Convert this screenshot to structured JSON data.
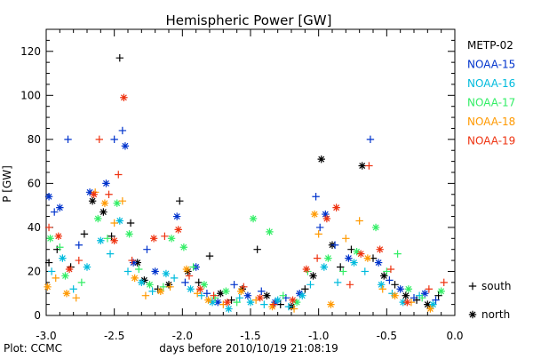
{
  "chart_data": {
    "type": "scatter",
    "title": "Hemispheric Power [GW]",
    "ylabel": "P [GW]",
    "xlabel": "days before 2010/10/19 21:08:19",
    "xlim": [
      -3.0,
      0.0
    ],
    "ylim": [
      0,
      130
    ],
    "x_ticks": [
      -3.0,
      -2.5,
      -2.0,
      -1.5,
      -1.0,
      -0.5,
      0.0
    ],
    "x_tick_labels": [
      "-3.0",
      "-2.5",
      "-2.0",
      "-1.5",
      "-1.0",
      "-0.5",
      "0.0"
    ],
    "y_ticks": [
      0,
      20,
      40,
      60,
      80,
      100,
      120
    ],
    "y_tick_labels": [
      "0",
      "20",
      "40",
      "60",
      "80",
      "100",
      "120"
    ],
    "legend_position": "right",
    "marker_legend": [
      {
        "symbol": "+",
        "label": "south",
        "marker": "plus"
      },
      {
        "symbol": "*",
        "label": "north",
        "marker": "star"
      }
    ],
    "footer": "Plot: CCMC",
    "series": [
      {
        "name": "METP-02",
        "color": "#000000",
        "points": [
          {
            "x": -2.98,
            "y": 24,
            "h": "s"
          },
          {
            "x": -2.92,
            "y": 30,
            "h": "s"
          },
          {
            "x": -2.82,
            "y": 22,
            "h": "s"
          },
          {
            "x": -2.72,
            "y": 37,
            "h": "s"
          },
          {
            "x": -2.66,
            "y": 52,
            "h": "n"
          },
          {
            "x": -2.58,
            "y": 47,
            "h": "n"
          },
          {
            "x": -2.52,
            "y": 36,
            "h": "s"
          },
          {
            "x": -2.46,
            "y": 117,
            "h": "s"
          },
          {
            "x": -2.38,
            "y": 42,
            "h": "s"
          },
          {
            "x": -2.33,
            "y": 24,
            "h": "n"
          },
          {
            "x": -2.28,
            "y": 16,
            "h": "n"
          },
          {
            "x": -2.18,
            "y": 12,
            "h": "s"
          },
          {
            "x": -2.1,
            "y": 14,
            "h": "n"
          },
          {
            "x": -2.02,
            "y": 52,
            "h": "s"
          },
          {
            "x": -1.96,
            "y": 20,
            "h": "n"
          },
          {
            "x": -1.88,
            "y": 15,
            "h": "s"
          },
          {
            "x": -1.8,
            "y": 27,
            "h": "s"
          },
          {
            "x": -1.72,
            "y": 10,
            "h": "n"
          },
          {
            "x": -1.64,
            "y": 7,
            "h": "s"
          },
          {
            "x": -1.56,
            "y": 12,
            "h": "n"
          },
          {
            "x": -1.45,
            "y": 30,
            "h": "s"
          },
          {
            "x": -1.38,
            "y": 9,
            "h": "n"
          },
          {
            "x": -1.28,
            "y": 5,
            "h": "s"
          },
          {
            "x": -1.2,
            "y": 4,
            "h": "n"
          },
          {
            "x": -1.1,
            "y": 12,
            "h": "s"
          },
          {
            "x": -1.04,
            "y": 18,
            "h": "n"
          },
          {
            "x": -0.98,
            "y": 71,
            "h": "n"
          },
          {
            "x": -0.9,
            "y": 32,
            "h": "n"
          },
          {
            "x": -0.84,
            "y": 22,
            "h": "s"
          },
          {
            "x": -0.76,
            "y": 30,
            "h": "s"
          },
          {
            "x": -0.68,
            "y": 68,
            "h": "n"
          },
          {
            "x": -0.6,
            "y": 26,
            "h": "s"
          },
          {
            "x": -0.52,
            "y": 18,
            "h": "n"
          },
          {
            "x": -0.44,
            "y": 14,
            "h": "s"
          },
          {
            "x": -0.36,
            "y": 9,
            "h": "n"
          },
          {
            "x": -0.28,
            "y": 7,
            "h": "s"
          },
          {
            "x": -0.2,
            "y": 5,
            "h": "n"
          },
          {
            "x": -0.12,
            "y": 9,
            "h": "s"
          }
        ]
      },
      {
        "name": "NOAA-15",
        "color": "#0033cc",
        "points": [
          {
            "x": -2.98,
            "y": 54,
            "h": "n"
          },
          {
            "x": -2.94,
            "y": 47,
            "h": "s"
          },
          {
            "x": -2.9,
            "y": 49,
            "h": "n"
          },
          {
            "x": -2.84,
            "y": 80,
            "h": "s"
          },
          {
            "x": -2.76,
            "y": 32,
            "h": "s"
          },
          {
            "x": -2.68,
            "y": 56,
            "h": "n"
          },
          {
            "x": -2.56,
            "y": 60,
            "h": "n"
          },
          {
            "x": -2.5,
            "y": 80,
            "h": "s"
          },
          {
            "x": -2.44,
            "y": 84,
            "h": "s"
          },
          {
            "x": -2.42,
            "y": 77,
            "h": "n"
          },
          {
            "x": -2.36,
            "y": 24,
            "h": "n"
          },
          {
            "x": -2.26,
            "y": 30,
            "h": "s"
          },
          {
            "x": -2.2,
            "y": 20,
            "h": "n"
          },
          {
            "x": -2.04,
            "y": 45,
            "h": "n"
          },
          {
            "x": -1.98,
            "y": 15,
            "h": "s"
          },
          {
            "x": -1.9,
            "y": 22,
            "h": "n"
          },
          {
            "x": -1.82,
            "y": 10,
            "h": "s"
          },
          {
            "x": -1.74,
            "y": 6,
            "h": "n"
          },
          {
            "x": -1.62,
            "y": 14,
            "h": "s"
          },
          {
            "x": -1.52,
            "y": 9,
            "h": "n"
          },
          {
            "x": -1.42,
            "y": 11,
            "h": "s"
          },
          {
            "x": -1.32,
            "y": 6,
            "h": "n"
          },
          {
            "x": -1.24,
            "y": 8,
            "h": "s"
          },
          {
            "x": -1.14,
            "y": 10,
            "h": "n"
          },
          {
            "x": -1.02,
            "y": 54,
            "h": "s"
          },
          {
            "x": -0.99,
            "y": 40,
            "h": "s"
          },
          {
            "x": -0.95,
            "y": 46,
            "h": "n"
          },
          {
            "x": -0.88,
            "y": 32,
            "h": "s"
          },
          {
            "x": -0.78,
            "y": 26,
            "h": "n"
          },
          {
            "x": -0.62,
            "y": 80,
            "h": "s"
          },
          {
            "x": -0.56,
            "y": 24,
            "h": "n"
          },
          {
            "x": -0.48,
            "y": 16,
            "h": "s"
          },
          {
            "x": -0.4,
            "y": 12,
            "h": "n"
          },
          {
            "x": -0.3,
            "y": 8,
            "h": "s"
          },
          {
            "x": -0.22,
            "y": 10,
            "h": "n"
          },
          {
            "x": -0.14,
            "y": 7,
            "h": "s"
          }
        ]
      },
      {
        "name": "NOAA-16",
        "color": "#00bbdd",
        "points": [
          {
            "x": -2.96,
            "y": 20,
            "h": "s"
          },
          {
            "x": -2.88,
            "y": 26,
            "h": "n"
          },
          {
            "x": -2.8,
            "y": 12,
            "h": "s"
          },
          {
            "x": -2.7,
            "y": 22,
            "h": "n"
          },
          {
            "x": -2.6,
            "y": 34,
            "h": "n"
          },
          {
            "x": -2.53,
            "y": 28,
            "h": "s"
          },
          {
            "x": -2.46,
            "y": 43,
            "h": "n"
          },
          {
            "x": -2.4,
            "y": 20,
            "h": "s"
          },
          {
            "x": -2.3,
            "y": 15,
            "h": "n"
          },
          {
            "x": -2.22,
            "y": 11,
            "h": "s"
          },
          {
            "x": -2.12,
            "y": 19,
            "h": "n"
          },
          {
            "x": -2.06,
            "y": 17,
            "h": "s"
          },
          {
            "x": -1.94,
            "y": 12,
            "h": "n"
          },
          {
            "x": -1.86,
            "y": 9,
            "h": "s"
          },
          {
            "x": -1.78,
            "y": 6,
            "h": "n"
          },
          {
            "x": -1.66,
            "y": 3,
            "h": "n"
          },
          {
            "x": -1.58,
            "y": 8,
            "h": "s"
          },
          {
            "x": -1.5,
            "y": 6,
            "h": "n"
          },
          {
            "x": -1.4,
            "y": 5,
            "h": "s"
          },
          {
            "x": -1.3,
            "y": 7,
            "h": "n"
          },
          {
            "x": -1.22,
            "y": 4,
            "h": "s"
          },
          {
            "x": -1.12,
            "y": 9,
            "h": "n"
          },
          {
            "x": -1.06,
            "y": 14,
            "h": "s"
          },
          {
            "x": -0.96,
            "y": 22,
            "h": "n"
          },
          {
            "x": -0.86,
            "y": 15,
            "h": "s"
          },
          {
            "x": -0.74,
            "y": 24,
            "h": "n"
          },
          {
            "x": -0.66,
            "y": 20,
            "h": "s"
          },
          {
            "x": -0.54,
            "y": 14,
            "h": "n"
          },
          {
            "x": -0.46,
            "y": 10,
            "h": "s"
          },
          {
            "x": -0.38,
            "y": 6,
            "h": "n"
          },
          {
            "x": -0.26,
            "y": 9,
            "h": "s"
          },
          {
            "x": -0.16,
            "y": 5,
            "h": "n"
          }
        ]
      },
      {
        "name": "NOAA-17",
        "color": "#33ee66",
        "points": [
          {
            "x": -2.97,
            "y": 35,
            "h": "n"
          },
          {
            "x": -2.9,
            "y": 31,
            "h": "s"
          },
          {
            "x": -2.86,
            "y": 18,
            "h": "n"
          },
          {
            "x": -2.74,
            "y": 15,
            "h": "s"
          },
          {
            "x": -2.62,
            "y": 44,
            "h": "n"
          },
          {
            "x": -2.55,
            "y": 35,
            "h": "s"
          },
          {
            "x": -2.48,
            "y": 51,
            "h": "n"
          },
          {
            "x": -2.39,
            "y": 37,
            "h": "n"
          },
          {
            "x": -2.32,
            "y": 21,
            "h": "s"
          },
          {
            "x": -2.24,
            "y": 14,
            "h": "n"
          },
          {
            "x": -2.14,
            "y": 13,
            "h": "s"
          },
          {
            "x": -2.08,
            "y": 35,
            "h": "n"
          },
          {
            "x": -1.99,
            "y": 31,
            "h": "n"
          },
          {
            "x": -1.92,
            "y": 22,
            "h": "s"
          },
          {
            "x": -1.84,
            "y": 14,
            "h": "n"
          },
          {
            "x": -1.76,
            "y": 8,
            "h": "s"
          },
          {
            "x": -1.68,
            "y": 11,
            "h": "n"
          },
          {
            "x": -1.6,
            "y": 6,
            "h": "s"
          },
          {
            "x": -1.48,
            "y": 44,
            "h": "n"
          },
          {
            "x": -1.36,
            "y": 38,
            "h": "n"
          },
          {
            "x": -1.26,
            "y": 9,
            "h": "s"
          },
          {
            "x": -1.16,
            "y": 6,
            "h": "n"
          },
          {
            "x": -1.08,
            "y": 20,
            "h": "s"
          },
          {
            "x": -0.93,
            "y": 26,
            "h": "n"
          },
          {
            "x": -0.82,
            "y": 20,
            "h": "s"
          },
          {
            "x": -0.72,
            "y": 29,
            "h": "n"
          },
          {
            "x": -0.58,
            "y": 40,
            "h": "n"
          },
          {
            "x": -0.5,
            "y": 20,
            "h": "s"
          },
          {
            "x": -0.42,
            "y": 28,
            "h": "s"
          },
          {
            "x": -0.34,
            "y": 12,
            "h": "n"
          },
          {
            "x": -0.24,
            "y": 8,
            "h": "s"
          },
          {
            "x": -0.1,
            "y": 11,
            "h": "n"
          }
        ]
      },
      {
        "name": "NOAA-18",
        "color": "#ff9900",
        "points": [
          {
            "x": -2.99,
            "y": 13,
            "h": "n"
          },
          {
            "x": -2.93,
            "y": 17,
            "h": "s"
          },
          {
            "x": -2.85,
            "y": 10,
            "h": "n"
          },
          {
            "x": -2.78,
            "y": 8,
            "h": "s"
          },
          {
            "x": -2.64,
            "y": 56,
            "h": "s"
          },
          {
            "x": -2.57,
            "y": 51,
            "h": "n"
          },
          {
            "x": -2.5,
            "y": 42,
            "h": "s"
          },
          {
            "x": -2.44,
            "y": 52,
            "h": "s"
          },
          {
            "x": -2.35,
            "y": 17,
            "h": "n"
          },
          {
            "x": -2.27,
            "y": 9,
            "h": "s"
          },
          {
            "x": -2.16,
            "y": 11,
            "h": "n"
          },
          {
            "x": -2.09,
            "y": 13,
            "h": "s"
          },
          {
            "x": -1.97,
            "y": 21,
            "h": "n"
          },
          {
            "x": -1.89,
            "y": 10,
            "h": "s"
          },
          {
            "x": -1.81,
            "y": 7,
            "h": "n"
          },
          {
            "x": -1.7,
            "y": 5,
            "h": "s"
          },
          {
            "x": -1.57,
            "y": 11,
            "h": "n"
          },
          {
            "x": -1.46,
            "y": 7,
            "h": "s"
          },
          {
            "x": -1.34,
            "y": 4,
            "h": "n"
          },
          {
            "x": -1.18,
            "y": 3,
            "h": "s"
          },
          {
            "x": -1.03,
            "y": 46,
            "h": "n"
          },
          {
            "x": -1.0,
            "y": 37,
            "h": "s"
          },
          {
            "x": -0.91,
            "y": 5,
            "h": "n"
          },
          {
            "x": -0.8,
            "y": 35,
            "h": "s"
          },
          {
            "x": -0.7,
            "y": 43,
            "h": "s"
          },
          {
            "x": -0.64,
            "y": 26,
            "h": "n"
          },
          {
            "x": -0.53,
            "y": 12,
            "h": "s"
          },
          {
            "x": -0.44,
            "y": 9,
            "h": "n"
          },
          {
            "x": -0.32,
            "y": 6,
            "h": "s"
          },
          {
            "x": -0.18,
            "y": 3,
            "h": "n"
          }
        ]
      },
      {
        "name": "NOAA-19",
        "color": "#ee3311",
        "points": [
          {
            "x": -2.98,
            "y": 40,
            "h": "s"
          },
          {
            "x": -2.91,
            "y": 36,
            "h": "n"
          },
          {
            "x": -2.83,
            "y": 21,
            "h": "n"
          },
          {
            "x": -2.76,
            "y": 25,
            "h": "s"
          },
          {
            "x": -2.65,
            "y": 55,
            "h": "n"
          },
          {
            "x": -2.61,
            "y": 80,
            "h": "s"
          },
          {
            "x": -2.54,
            "y": 55,
            "h": "s"
          },
          {
            "x": -2.5,
            "y": 34,
            "h": "n"
          },
          {
            "x": -2.47,
            "y": 64,
            "h": "s"
          },
          {
            "x": -2.43,
            "y": 99,
            "h": "n"
          },
          {
            "x": -2.37,
            "y": 25,
            "h": "s"
          },
          {
            "x": -2.21,
            "y": 35,
            "h": "n"
          },
          {
            "x": -2.13,
            "y": 36,
            "h": "s"
          },
          {
            "x": -2.03,
            "y": 39,
            "h": "n"
          },
          {
            "x": -1.95,
            "y": 18,
            "h": "s"
          },
          {
            "x": -1.87,
            "y": 12,
            "h": "n"
          },
          {
            "x": -1.77,
            "y": 9,
            "h": "s"
          },
          {
            "x": -1.67,
            "y": 6,
            "h": "n"
          },
          {
            "x": -1.55,
            "y": 13,
            "h": "s"
          },
          {
            "x": -1.43,
            "y": 8,
            "h": "n"
          },
          {
            "x": -1.33,
            "y": 5,
            "h": "s"
          },
          {
            "x": -1.19,
            "y": 7,
            "h": "n"
          },
          {
            "x": -1.09,
            "y": 21,
            "h": "n"
          },
          {
            "x": -1.01,
            "y": 26,
            "h": "s"
          },
          {
            "x": -0.94,
            "y": 44,
            "h": "n"
          },
          {
            "x": -0.87,
            "y": 49,
            "h": "n"
          },
          {
            "x": -0.77,
            "y": 14,
            "h": "s"
          },
          {
            "x": -0.69,
            "y": 28,
            "h": "n"
          },
          {
            "x": -0.63,
            "y": 68,
            "h": "s"
          },
          {
            "x": -0.55,
            "y": 30,
            "h": "n"
          },
          {
            "x": -0.47,
            "y": 21,
            "h": "s"
          },
          {
            "x": -0.35,
            "y": 6,
            "h": "n"
          },
          {
            "x": -0.19,
            "y": 12,
            "h": "s"
          },
          {
            "x": -0.08,
            "y": 15,
            "h": "s"
          }
        ]
      }
    ]
  }
}
